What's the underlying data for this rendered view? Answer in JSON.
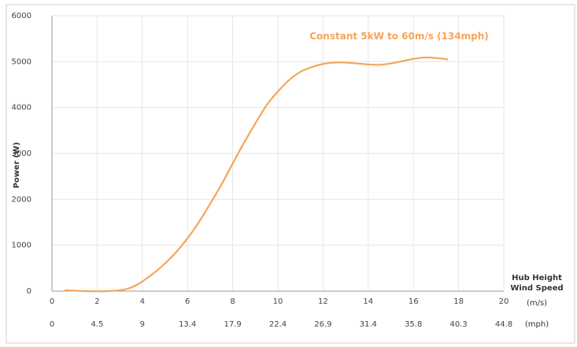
{
  "chart_data": {
    "type": "line",
    "ylabel": "Power (W)",
    "ylim": [
      0,
      6000
    ],
    "xlim": [
      0,
      20
    ],
    "yticks": [
      "0",
      "1000",
      "2000",
      "3000",
      "4000",
      "5000",
      "6000"
    ],
    "xticks_ms": [
      "0",
      "2",
      "4",
      "6",
      "8",
      "10",
      "12",
      "14",
      "16",
      "18",
      "20"
    ],
    "xticks_mph": [
      "0",
      "4.5",
      "9",
      "13.4",
      "17.9",
      "22.4",
      "26.9",
      "31.4",
      "35.8",
      "40.3",
      "44.8"
    ],
    "x_unit_ms": "(m/s)",
    "x_unit_mph": "(mph)",
    "xlabel_line1": "Hub Height",
    "xlabel_line2": "Wind Speed",
    "annotation": "Constant 5kW to 60m/s (134mph)",
    "grid": true,
    "series": [
      {
        "color": "#f5a55a",
        "x": [
          0.6,
          1.5,
          2.5,
          3.0,
          3.4,
          3.8,
          4.2,
          4.6,
          5.0,
          5.5,
          6.0,
          6.5,
          7.0,
          7.5,
          8.0,
          8.5,
          9.0,
          9.5,
          10.0,
          10.5,
          11.0,
          11.5,
          12.0,
          12.5,
          13.0,
          13.5,
          14.0,
          14.5,
          15.0,
          15.5,
          16.0,
          16.5,
          17.0,
          17.5
        ],
        "y": [
          20,
          0,
          0,
          20,
          60,
          150,
          280,
          430,
          600,
          850,
          1150,
          1500,
          1900,
          2320,
          2780,
          3230,
          3650,
          4050,
          4350,
          4600,
          4780,
          4880,
          4950,
          4980,
          4980,
          4960,
          4940,
          4930,
          4960,
          5010,
          5060,
          5090,
          5080,
          5050
        ]
      }
    ]
  },
  "colors": {
    "line": "#f5a55a",
    "annotation": "#f5a55a",
    "grid": "#e6e6e6",
    "axis": "#999999"
  }
}
